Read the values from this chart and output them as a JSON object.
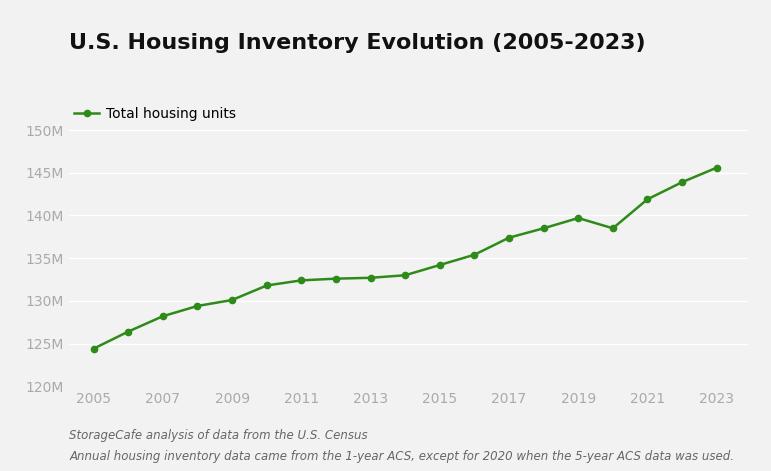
{
  "title": "U.S. Housing Inventory Evolution (2005-2023)",
  "legend_label": "Total housing units",
  "years": [
    2005,
    2006,
    2007,
    2008,
    2009,
    2010,
    2011,
    2012,
    2013,
    2014,
    2015,
    2016,
    2017,
    2018,
    2019,
    2020,
    2021,
    2022,
    2023
  ],
  "values": [
    124.4,
    126.4,
    128.2,
    129.4,
    130.1,
    131.8,
    132.4,
    132.6,
    132.7,
    133.0,
    134.2,
    135.4,
    137.4,
    138.5,
    139.7,
    138.5,
    141.9,
    143.9,
    145.6
  ],
  "line_color": "#2e8b1a",
  "marker": "o",
  "marker_size": 4.5,
  "line_width": 1.8,
  "ylim": [
    120,
    152
  ],
  "yticks": [
    120,
    125,
    130,
    135,
    140,
    145,
    150
  ],
  "ytick_labels": [
    "120M",
    "125M",
    "130M",
    "135M",
    "140M",
    "145M",
    "150M"
  ],
  "xticks": [
    2005,
    2007,
    2009,
    2011,
    2013,
    2015,
    2017,
    2019,
    2021,
    2023
  ],
  "xlim": [
    2004.3,
    2023.9
  ],
  "background_color": "#f2f2f2",
  "grid_color": "#ffffff",
  "title_fontsize": 16,
  "tick_fontsize": 10,
  "legend_fontsize": 10,
  "footnote1": "StorageCafe analysis of data from the U.S. Census",
  "footnote2": "Annual housing inventory data came from the 1-year ACS, except for 2020 when the 5-year ACS data was used.",
  "footnote_fontsize": 8.5,
  "tick_color": "#aaaaaa",
  "footnote_color": "#666666"
}
